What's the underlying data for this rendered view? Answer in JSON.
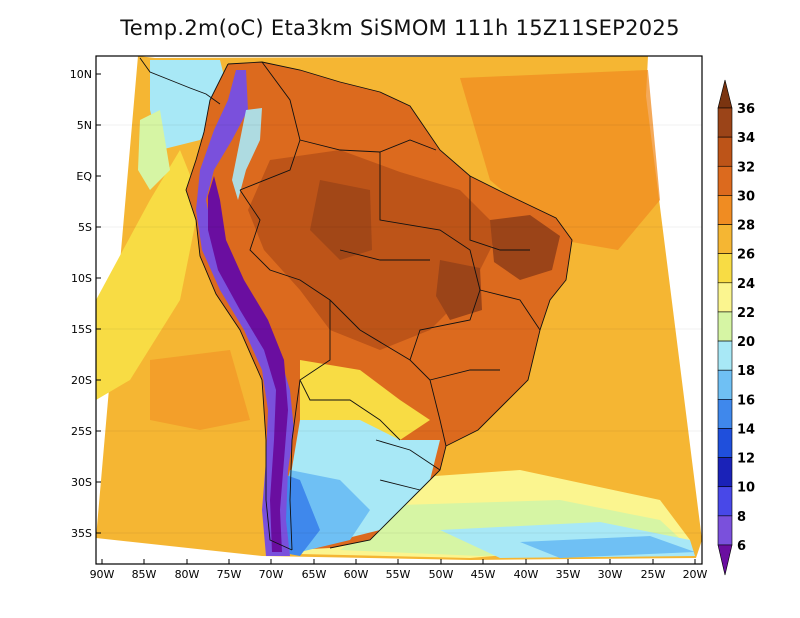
{
  "title": "Temp.2m(oC) Eta3km SiSMOM 111h 15Z11SEP2025",
  "axes": {
    "lat_labels": [
      "10N",
      "5N",
      "EQ",
      "5S",
      "10S",
      "15S",
      "20S",
      "25S",
      "30S",
      "35S"
    ],
    "lon_labels": [
      "90W",
      "85W",
      "80W",
      "75W",
      "70W",
      "65W",
      "60W",
      "55W",
      "50W",
      "45W",
      "40W",
      "35W",
      "30W",
      "25W",
      "20W"
    ]
  },
  "colorbar": {
    "labels": [
      "36",
      "34",
      "32",
      "30",
      "28",
      "26",
      "24",
      "22",
      "20",
      "18",
      "16",
      "14",
      "12",
      "10",
      "8",
      "6"
    ],
    "colors_top_to_bottom": [
      "#7a3410",
      "#9b4418",
      "#bd5418",
      "#dc6a1e",
      "#f08c22",
      "#f5b633",
      "#f8dc44",
      "#fbf58f",
      "#d6f5a4",
      "#a8e8f6",
      "#6fc0f4",
      "#3f88ec",
      "#1f4fdc",
      "#1a22b8",
      "#4848e8",
      "#7a50dc",
      "#9c38c8",
      "#6a0ea0"
    ]
  }
}
